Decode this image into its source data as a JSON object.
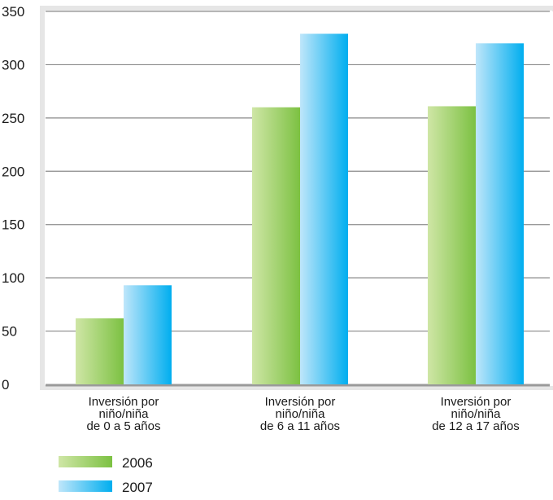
{
  "chart_data": {
    "type": "bar",
    "categories": [
      [
        "Inversión por",
        "niño/niña",
        "de 0 a 5 años"
      ],
      [
        "Inversión por",
        "niño/niña",
        "de 6 a 11 años"
      ],
      [
        "Inversión por",
        "niño/niña",
        "de 12 a 17 años"
      ]
    ],
    "series": [
      {
        "name": "2006",
        "values": [
          62,
          260,
          261
        ]
      },
      {
        "name": "2007",
        "values": [
          93,
          329,
          320
        ]
      }
    ],
    "yticks": [
      "0",
      "50",
      "100",
      "150",
      "200",
      "250",
      "300",
      "350"
    ],
    "ylim": [
      0,
      350
    ],
    "grid": true,
    "legend_position": "bottom-left",
    "colors": {
      "series_2006": [
        "#cfe6a6",
        "#7cc142"
      ],
      "series_2007": [
        "#bfe6fa",
        "#00aeef"
      ],
      "grid": "#8a8a8a",
      "frame_shadow": "#cccccc"
    }
  }
}
